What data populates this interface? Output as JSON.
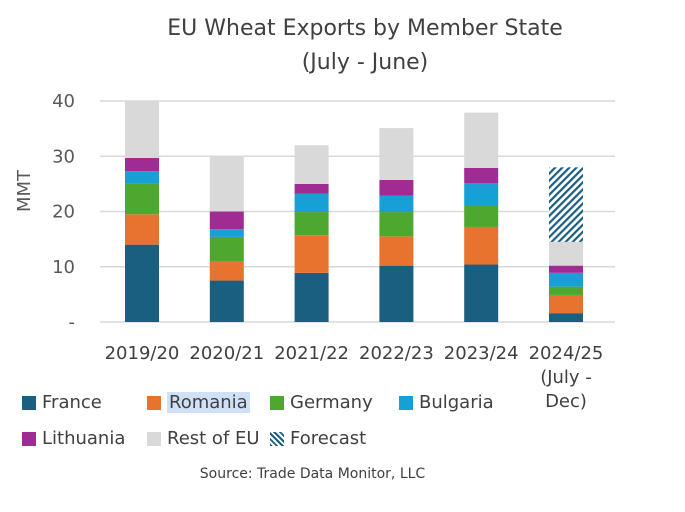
{
  "chart_data": {
    "type": "bar",
    "stacked": true,
    "title": "EU Wheat Exports by Member State",
    "subtitle": "(July - June)",
    "ylabel": "MMT",
    "xlabel": "",
    "ylim": [
      0,
      40
    ],
    "yticks": [
      0,
      10,
      20,
      30,
      40
    ],
    "ytick_labels": [
      "-",
      "10",
      "20",
      "30",
      "40"
    ],
    "grid": true,
    "legend_position": "bottom",
    "categories": [
      "2019/20",
      "2020/21",
      "2021/22",
      "2022/23",
      "2023/24",
      "2024/25 (July - Dec)"
    ],
    "category_lines": [
      [
        "2019/20"
      ],
      [
        "2020/21"
      ],
      [
        "2021/22"
      ],
      [
        "2022/23"
      ],
      [
        "2023/24"
      ],
      [
        "2024/25",
        "(July -",
        "Dec)"
      ]
    ],
    "series": [
      {
        "name": "France",
        "color": "#1a5e80",
        "values": [
          14.0,
          7.5,
          8.9,
          10.2,
          10.4,
          1.6
        ]
      },
      {
        "name": "Romania",
        "color": "#e8732f",
        "values": [
          5.5,
          3.4,
          6.8,
          5.3,
          6.8,
          3.3
        ]
      },
      {
        "name": "Germany",
        "color": "#4ea72e",
        "values": [
          5.5,
          4.5,
          4.2,
          4.4,
          3.8,
          1.5
        ]
      },
      {
        "name": "Bulgaria",
        "color": "#16a0d6",
        "values": [
          2.3,
          1.4,
          3.3,
          3.0,
          4.1,
          2.5
        ]
      },
      {
        "name": "Lithuania",
        "color": "#a02b93",
        "values": [
          2.4,
          3.2,
          1.8,
          2.8,
          2.8,
          1.3
        ]
      },
      {
        "name": "Rest of EU",
        "color": "#d9d9d9",
        "values": [
          10.3,
          10.0,
          7.0,
          9.4,
          10.0,
          4.3
        ]
      },
      {
        "name": "Forecast",
        "color": "#1a5e80",
        "pattern": "diagonal-hatch",
        "values": [
          0,
          0,
          0,
          0,
          0,
          13.5
        ]
      }
    ],
    "source": "Source: Trade Data Monitor, LLC",
    "highlighted_legend_entry": "Romania"
  }
}
